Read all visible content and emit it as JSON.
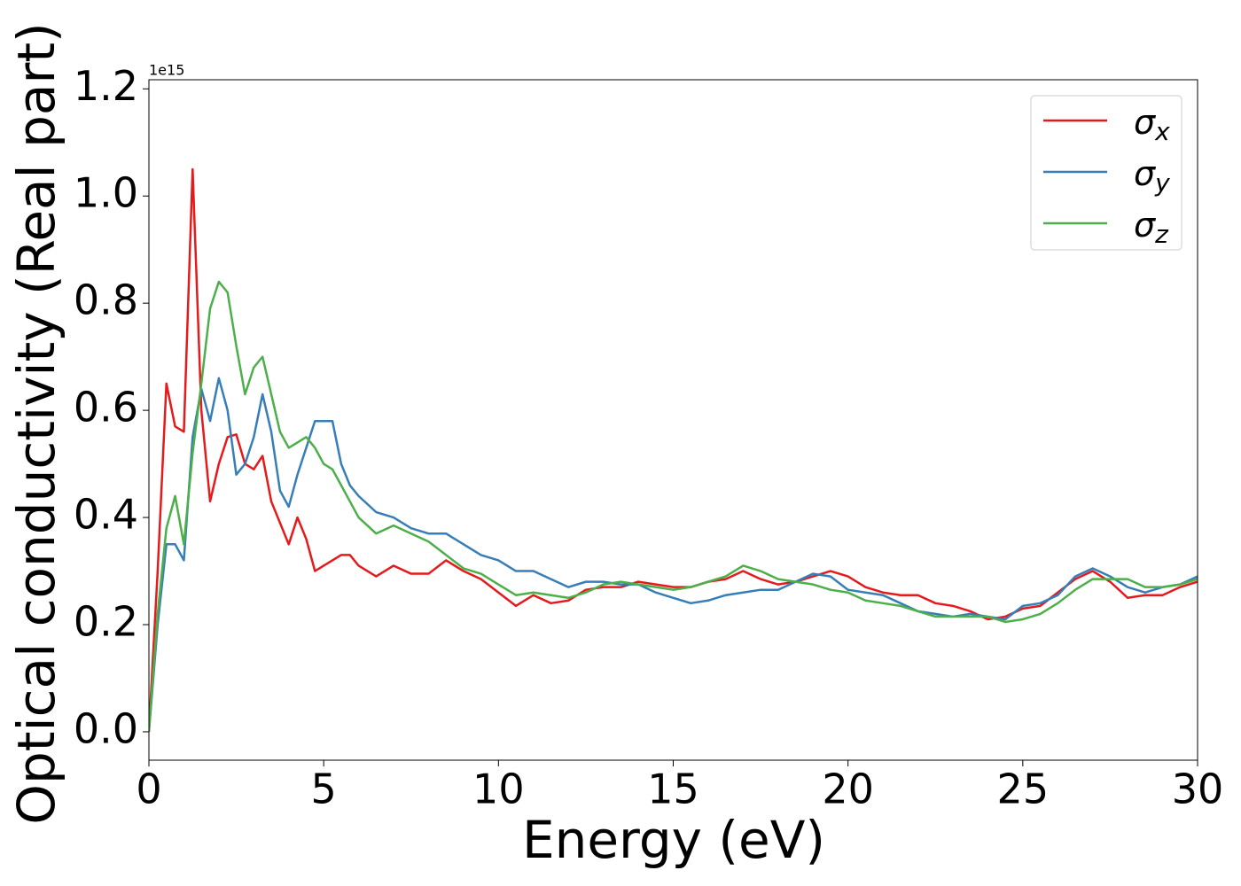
{
  "chart_data": {
    "type": "line",
    "x_label": "Energy (eV)",
    "y_label": "Optical conductivity (Real part)",
    "y_offset_label": "1e15",
    "x": [
      0,
      0.25,
      0.5,
      0.75,
      1,
      1.25,
      1.5,
      1.75,
      2,
      2.25,
      2.5,
      2.75,
      3,
      3.25,
      3.5,
      3.75,
      4,
      4.25,
      4.5,
      4.75,
      5,
      5.25,
      5.5,
      5.75,
      6,
      6.5,
      7,
      7.5,
      8,
      8.5,
      9,
      9.5,
      10,
      10.5,
      11,
      11.5,
      12,
      12.5,
      13,
      13.5,
      14,
      14.5,
      15,
      15.5,
      16,
      16.5,
      17,
      17.5,
      18,
      18.5,
      19,
      19.5,
      20,
      20.5,
      21,
      21.5,
      22,
      22.5,
      23,
      23.5,
      24,
      24.5,
      25,
      25.5,
      26,
      26.5,
      27,
      27.5,
      28,
      28.5,
      29,
      29.5,
      30
    ],
    "series": [
      {
        "name": "σx",
        "color": "#e41a1c",
        "values": [
          0,
          0.3,
          0.65,
          0.57,
          0.56,
          1.05,
          0.6,
          0.43,
          0.5,
          0.55,
          0.555,
          0.5,
          0.49,
          0.515,
          0.43,
          0.39,
          0.35,
          0.4,
          0.36,
          0.3,
          0.31,
          0.32,
          0.33,
          0.33,
          0.31,
          0.29,
          0.31,
          0.295,
          0.295,
          0.32,
          0.3,
          0.285,
          0.26,
          0.235,
          0.255,
          0.24,
          0.245,
          0.265,
          0.27,
          0.27,
          0.28,
          0.275,
          0.27,
          0.27,
          0.28,
          0.285,
          0.3,
          0.285,
          0.275,
          0.28,
          0.29,
          0.3,
          0.29,
          0.27,
          0.26,
          0.255,
          0.255,
          0.24,
          0.235,
          0.225,
          0.21,
          0.215,
          0.23,
          0.235,
          0.26,
          0.285,
          0.3,
          0.28,
          0.25,
          0.255,
          0.255,
          0.27,
          0.28
        ]
      },
      {
        "name": "σy",
        "color": "#377eb8",
        "values": [
          0,
          0.2,
          0.35,
          0.35,
          0.32,
          0.55,
          0.64,
          0.58,
          0.66,
          0.6,
          0.48,
          0.5,
          0.55,
          0.63,
          0.56,
          0.45,
          0.42,
          0.48,
          0.53,
          0.58,
          0.58,
          0.58,
          0.5,
          0.46,
          0.44,
          0.41,
          0.4,
          0.38,
          0.37,
          0.37,
          0.35,
          0.33,
          0.32,
          0.3,
          0.3,
          0.285,
          0.27,
          0.28,
          0.28,
          0.275,
          0.275,
          0.26,
          0.25,
          0.24,
          0.245,
          0.255,
          0.26,
          0.265,
          0.265,
          0.28,
          0.295,
          0.29,
          0.265,
          0.26,
          0.255,
          0.24,
          0.225,
          0.22,
          0.215,
          0.22,
          0.215,
          0.21,
          0.235,
          0.24,
          0.255,
          0.29,
          0.305,
          0.29,
          0.27,
          0.26,
          0.27,
          0.275,
          0.29
        ]
      },
      {
        "name": "σz",
        "color": "#4daf4a",
        "values": [
          0,
          0.22,
          0.38,
          0.44,
          0.35,
          0.52,
          0.65,
          0.79,
          0.84,
          0.82,
          0.72,
          0.63,
          0.68,
          0.7,
          0.63,
          0.56,
          0.53,
          0.54,
          0.55,
          0.53,
          0.5,
          0.49,
          0.46,
          0.43,
          0.4,
          0.37,
          0.385,
          0.37,
          0.355,
          0.33,
          0.305,
          0.295,
          0.275,
          0.255,
          0.26,
          0.255,
          0.25,
          0.26,
          0.275,
          0.28,
          0.275,
          0.27,
          0.265,
          0.27,
          0.28,
          0.29,
          0.31,
          0.3,
          0.285,
          0.28,
          0.275,
          0.265,
          0.26,
          0.245,
          0.24,
          0.235,
          0.225,
          0.215,
          0.215,
          0.215,
          0.215,
          0.205,
          0.21,
          0.22,
          0.24,
          0.265,
          0.285,
          0.285,
          0.285,
          0.27,
          0.27,
          0.275,
          0.285
        ]
      }
    ],
    "xlim": [
      0,
      30
    ],
    "xticks": [
      0,
      5,
      10,
      15,
      20,
      25,
      30
    ],
    "ylim": [
      -0.053,
      1.217
    ],
    "yticks": [
      {
        "value": 0,
        "label": "0.0"
      },
      0.2,
      0.4,
      0.6,
      0.8,
      {
        "value": 1,
        "label": "1.0"
      },
      1.2
    ],
    "legend": "upper right",
    "grid": false
  }
}
